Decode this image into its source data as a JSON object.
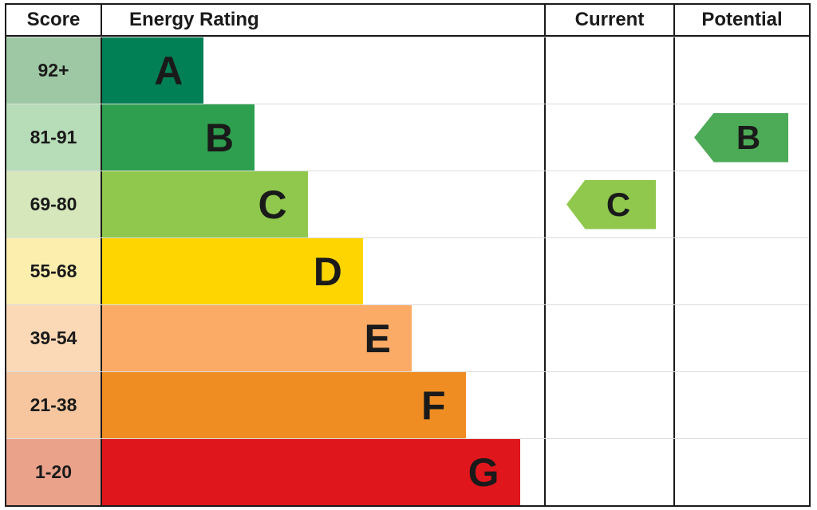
{
  "header": {
    "score": "Score",
    "energy_rating": "Energy Rating",
    "current": "Current",
    "potential": "Potential"
  },
  "bands": [
    {
      "score": "92+",
      "letter": "A",
      "color": "#008054",
      "tint": "#9ec8a4"
    },
    {
      "score": "81-91",
      "letter": "B",
      "color": "#2e9f4e",
      "tint": "#b7dcb8"
    },
    {
      "score": "69-80",
      "letter": "C",
      "color": "#8fc84d",
      "tint": "#d6e7bc"
    },
    {
      "score": "55-68",
      "letter": "D",
      "color": "#ffd500",
      "tint": "#fcefae"
    },
    {
      "score": "39-54",
      "letter": "E",
      "color": "#fbab66",
      "tint": "#fbd9b7"
    },
    {
      "score": "21-38",
      "letter": "F",
      "color": "#ef8d23",
      "tint": "#f7c69e"
    },
    {
      "score": "1-20",
      "letter": "G",
      "color": "#e0161d",
      "tint": "#eba28b"
    }
  ],
  "current": {
    "letter": "C",
    "color": "#8fc84d"
  },
  "potential": {
    "letter": "B",
    "color": "#4daa57"
  },
  "chart_data": {
    "type": "bar",
    "title": "Energy Rating (EPC)",
    "categories": [
      "A",
      "B",
      "C",
      "D",
      "E",
      "F",
      "G"
    ],
    "score_ranges": [
      "92+",
      "81-91",
      "69-80",
      "55-68",
      "39-54",
      "21-38",
      "1-20"
    ],
    "bar_width_pct": [
      23,
      34.5,
      46.5,
      59,
      70,
      82.4,
      94.5
    ],
    "colors": [
      "#008054",
      "#2e9f4e",
      "#8fc84d",
      "#ffd500",
      "#fbab66",
      "#ef8d23",
      "#e0161d"
    ],
    "current_rating": "C",
    "potential_rating": "B",
    "legend_position": "none",
    "grid": false
  }
}
